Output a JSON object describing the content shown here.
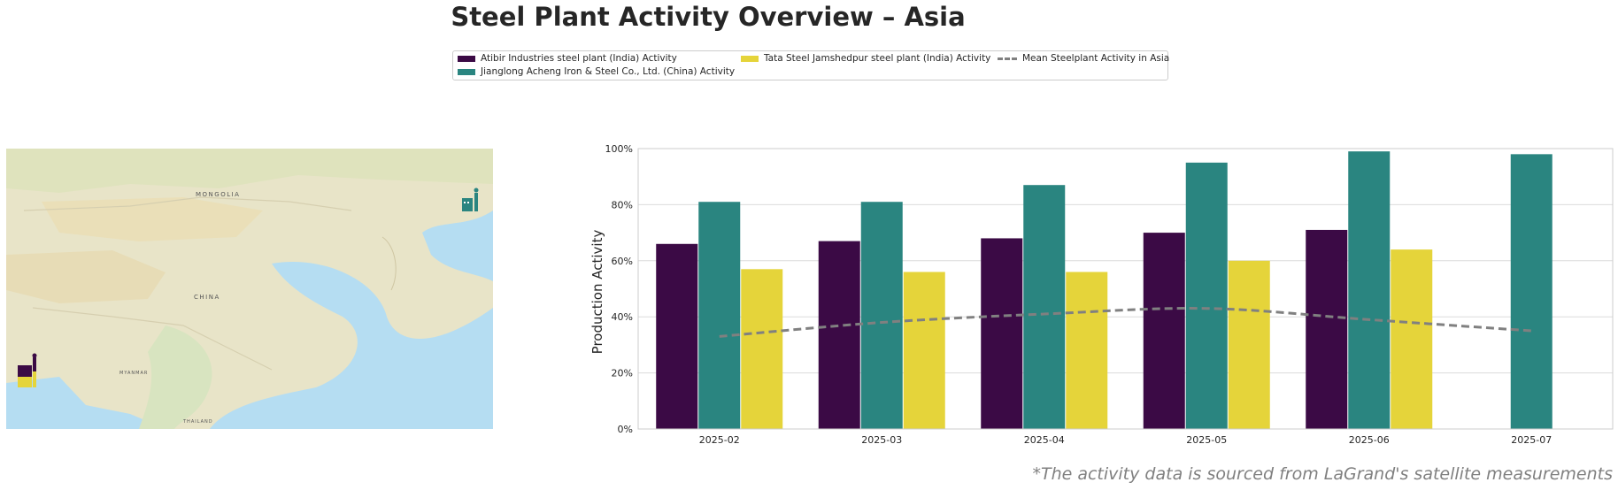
{
  "title": "Steel Plant Activity Overview – Asia",
  "footnote": "*The activity data is sourced from LaGrand's satellite measurements",
  "legend": {
    "items": [
      {
        "label": "Atibir Industries steel plant (India) Activity",
        "color": "#3b0a45",
        "kind": "bar"
      },
      {
        "label": "Jianglong Acheng Iron & Steel Co., Ltd. (China) Activity",
        "color": "#2a8580",
        "kind": "bar"
      },
      {
        "label": "Tata Steel Jamshedpur steel plant (India) Activity",
        "color": "#e5d43a",
        "kind": "bar"
      },
      {
        "label": "Mean Steelplant Activity in Asia",
        "color": "#808080",
        "kind": "dashed-line"
      }
    ]
  },
  "map": {
    "labels": {
      "mongolia": "MONGOLIA",
      "china": "CHINA",
      "myanmar": "MYANMAR",
      "thailand": "THAILAND"
    },
    "colors": {
      "land": "#e8e4c8",
      "water": "#b5ddf2",
      "desert": "#eadfb8"
    },
    "markers": [
      {
        "name": "atibir-marker",
        "color": "#3b0a45",
        "icon": "factory-icon"
      },
      {
        "name": "tata-marker",
        "color": "#e5d43a",
        "icon": "factory-icon"
      },
      {
        "name": "jianglong-marker",
        "color": "#2a8580",
        "icon": "factory-icon"
      }
    ]
  },
  "chart_data": {
    "type": "bar",
    "categories": [
      "2025-02",
      "2025-03",
      "2025-04",
      "2025-05",
      "2025-06",
      "2025-07"
    ],
    "series": [
      {
        "name": "Atibir Industries steel plant (India) Activity",
        "color": "#3b0a45",
        "values": [
          66,
          67,
          68,
          70,
          71,
          null
        ]
      },
      {
        "name": "Jianglong Acheng Iron & Steel Co., Ltd. (China) Activity",
        "color": "#2a8580",
        "values": [
          81,
          81,
          87,
          95,
          99,
          98
        ]
      },
      {
        "name": "Tata Steel Jamshedpur steel plant (India) Activity",
        "color": "#e5d43a",
        "values": [
          57,
          56,
          56,
          60,
          64,
          null
        ]
      }
    ],
    "line": {
      "name": "Mean Steelplant Activity in Asia",
      "color": "#808080",
      "style": "dashed",
      "values": [
        33,
        38,
        41,
        43,
        39,
        35
      ]
    },
    "ylabel": "Production Activity",
    "xlabel": "",
    "ylim": [
      0,
      100
    ],
    "yticks": [
      "0%",
      "20%",
      "40%",
      "60%",
      "80%",
      "100%"
    ],
    "grid": true
  }
}
